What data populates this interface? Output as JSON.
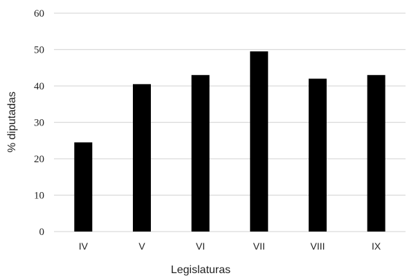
{
  "chart_data": {
    "type": "bar",
    "title": "",
    "xlabel": "Legislaturas",
    "ylabel": "% diputadas",
    "categories": [
      "IV",
      "V",
      "VI",
      "VII",
      "VIII",
      "IX"
    ],
    "values": [
      24.5,
      40.5,
      43,
      49.5,
      42,
      43
    ],
    "ylim": [
      0,
      60
    ],
    "yticks": [
      "0",
      "10",
      "20",
      "30",
      "40",
      "50",
      "60"
    ],
    "grid": true,
    "legend": "none",
    "colors": {
      "bar": "#000000",
      "grid": "#d9d9d9",
      "text": "#222222"
    }
  }
}
